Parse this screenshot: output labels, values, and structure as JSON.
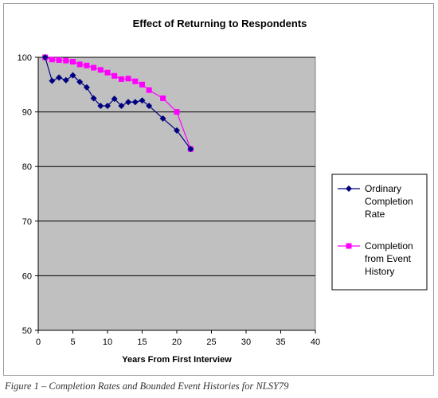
{
  "chart_data": {
    "type": "line",
    "title": "Effect of Returning to Respondents",
    "xlabel": "Years From First Interview",
    "ylabel": "",
    "xlim": [
      0,
      40
    ],
    "ylim": [
      50,
      100
    ],
    "x_ticks": [
      "0",
      "5",
      "10",
      "15",
      "20",
      "25",
      "30",
      "35",
      "40"
    ],
    "y_ticks": [
      "50",
      "60",
      "70",
      "80",
      "90",
      "100"
    ],
    "grid": "horizontal",
    "plot_background": "#c0c0c0",
    "legend_position": "right",
    "series": [
      {
        "name": "Ordinary Completion Rate",
        "legend_lines": [
          "Ordinary",
          "Completion",
          "Rate"
        ],
        "color": "#000080",
        "marker": "diamond",
        "points": [
          [
            1,
            100
          ],
          [
            2,
            95.7
          ],
          [
            3,
            96.3
          ],
          [
            4,
            95.8
          ],
          [
            5,
            96.7
          ],
          [
            6,
            95.5
          ],
          [
            7,
            94.5
          ],
          [
            8,
            92.5
          ],
          [
            9,
            91.1
          ],
          [
            10,
            91.1
          ],
          [
            11,
            92.4
          ],
          [
            12,
            91.1
          ],
          [
            13,
            91.8
          ],
          [
            14,
            91.8
          ],
          [
            15,
            92.1
          ],
          [
            16,
            91.1
          ],
          [
            18,
            88.8
          ],
          [
            20,
            86.6
          ],
          [
            22,
            83.2
          ]
        ]
      },
      {
        "name": "Completion from Event History",
        "legend_lines": [
          "Completion",
          "from Event",
          "History"
        ],
        "color": "#ff00ff",
        "marker": "square",
        "points": [
          [
            1,
            100
          ],
          [
            2,
            99.6
          ],
          [
            3,
            99.5
          ],
          [
            4,
            99.4
          ],
          [
            5,
            99.2
          ],
          [
            6,
            98.7
          ],
          [
            7,
            98.5
          ],
          [
            8,
            98.1
          ],
          [
            9,
            97.7
          ],
          [
            10,
            97.2
          ],
          [
            11,
            96.6
          ],
          [
            12,
            96.0
          ],
          [
            13,
            96.1
          ],
          [
            14,
            95.6
          ],
          [
            15,
            95.0
          ],
          [
            16,
            94.0
          ],
          [
            18,
            92.5
          ],
          [
            20,
            90.0
          ],
          [
            22,
            83.2
          ]
        ]
      }
    ]
  },
  "caption": "Figure 1 – Completion Rates and Bounded Event Histories for NLSY79"
}
